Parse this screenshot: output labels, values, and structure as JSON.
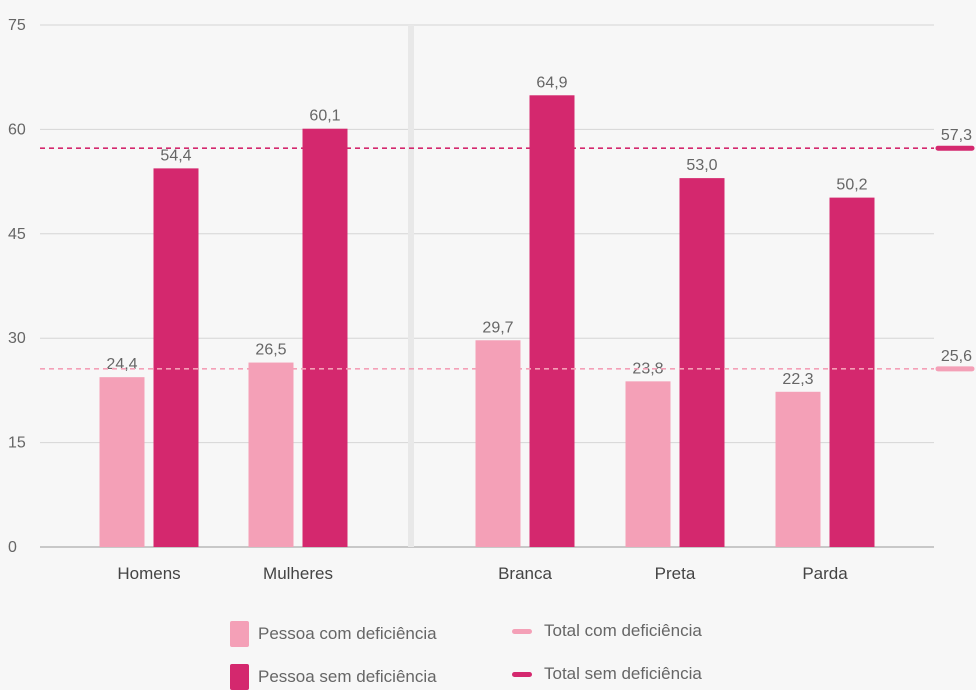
{
  "chart_data": {
    "type": "bar",
    "categories": [
      "Homens",
      "Mulheres",
      "Branca",
      "Preta",
      "Parda"
    ],
    "series": [
      {
        "name": "Pessoa com deficiência",
        "values": [
          24.4,
          26.5,
          29.7,
          23.8,
          22.3
        ],
        "labels": [
          "24,4",
          "26,5",
          "29,7",
          "23,8",
          "22,3"
        ],
        "color": "#f4a0b7"
      },
      {
        "name": "Pessoa sem deficiência",
        "values": [
          54.4,
          60.1,
          64.9,
          53.0,
          50.2
        ],
        "labels": [
          "54,4",
          "60,1",
          "64,9",
          "53,0",
          "50,2"
        ],
        "color": "#d4286e"
      }
    ],
    "reference_lines": [
      {
        "name": "Total com deficiência",
        "value": 25.6,
        "label": "25,6",
        "color": "#f4a0b7"
      },
      {
        "name": "Total sem deficiência",
        "value": 57.3,
        "label": "57,3",
        "color": "#d4286e"
      }
    ],
    "groups": [
      [
        "Homens",
        "Mulheres"
      ],
      [
        "Branca",
        "Preta",
        "Parda"
      ]
    ],
    "yticks": [
      0,
      15,
      30,
      45,
      60,
      75
    ],
    "ylim": [
      0,
      75
    ],
    "grid": true,
    "legend_position": "bottom",
    "title": "",
    "xlabel": "",
    "ylabel": ""
  }
}
